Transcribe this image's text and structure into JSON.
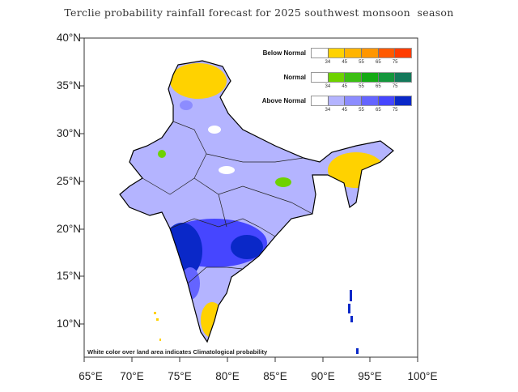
{
  "title": "Terclie probability rainfall forecast for 2025 southwest monsoon  season",
  "y_axis_labels": [
    "40°N",
    "35°N",
    "30°N",
    "25°N",
    "20°N",
    "15°N",
    "10°N"
  ],
  "x_axis_labels": [
    "65°E",
    "70°E",
    "75°E",
    "80°E",
    "85°E",
    "90°E",
    "95°E",
    "100°E"
  ],
  "legend": [
    {
      "label": "Below Normal",
      "colors": [
        "#ffffff",
        "#ffd200",
        "#ffb400",
        "#ff9600",
        "#ff5a00",
        "#ff3c00"
      ]
    },
    {
      "label": "Normal",
      "colors": [
        "#ffffff",
        "#6ed200",
        "#3cbe14",
        "#14aa14",
        "#14963c",
        "#14785a"
      ]
    },
    {
      "label": "Above Normal",
      "colors": [
        "#ffffff",
        "#b4b4ff",
        "#8c8cff",
        "#6464ff",
        "#4646ff",
        "#0a28c8"
      ]
    }
  ],
  "legend_ticks": [
    "34",
    "45",
    "55",
    "65",
    "75"
  ],
  "note": "White color over land area indicates Climatological probability"
}
